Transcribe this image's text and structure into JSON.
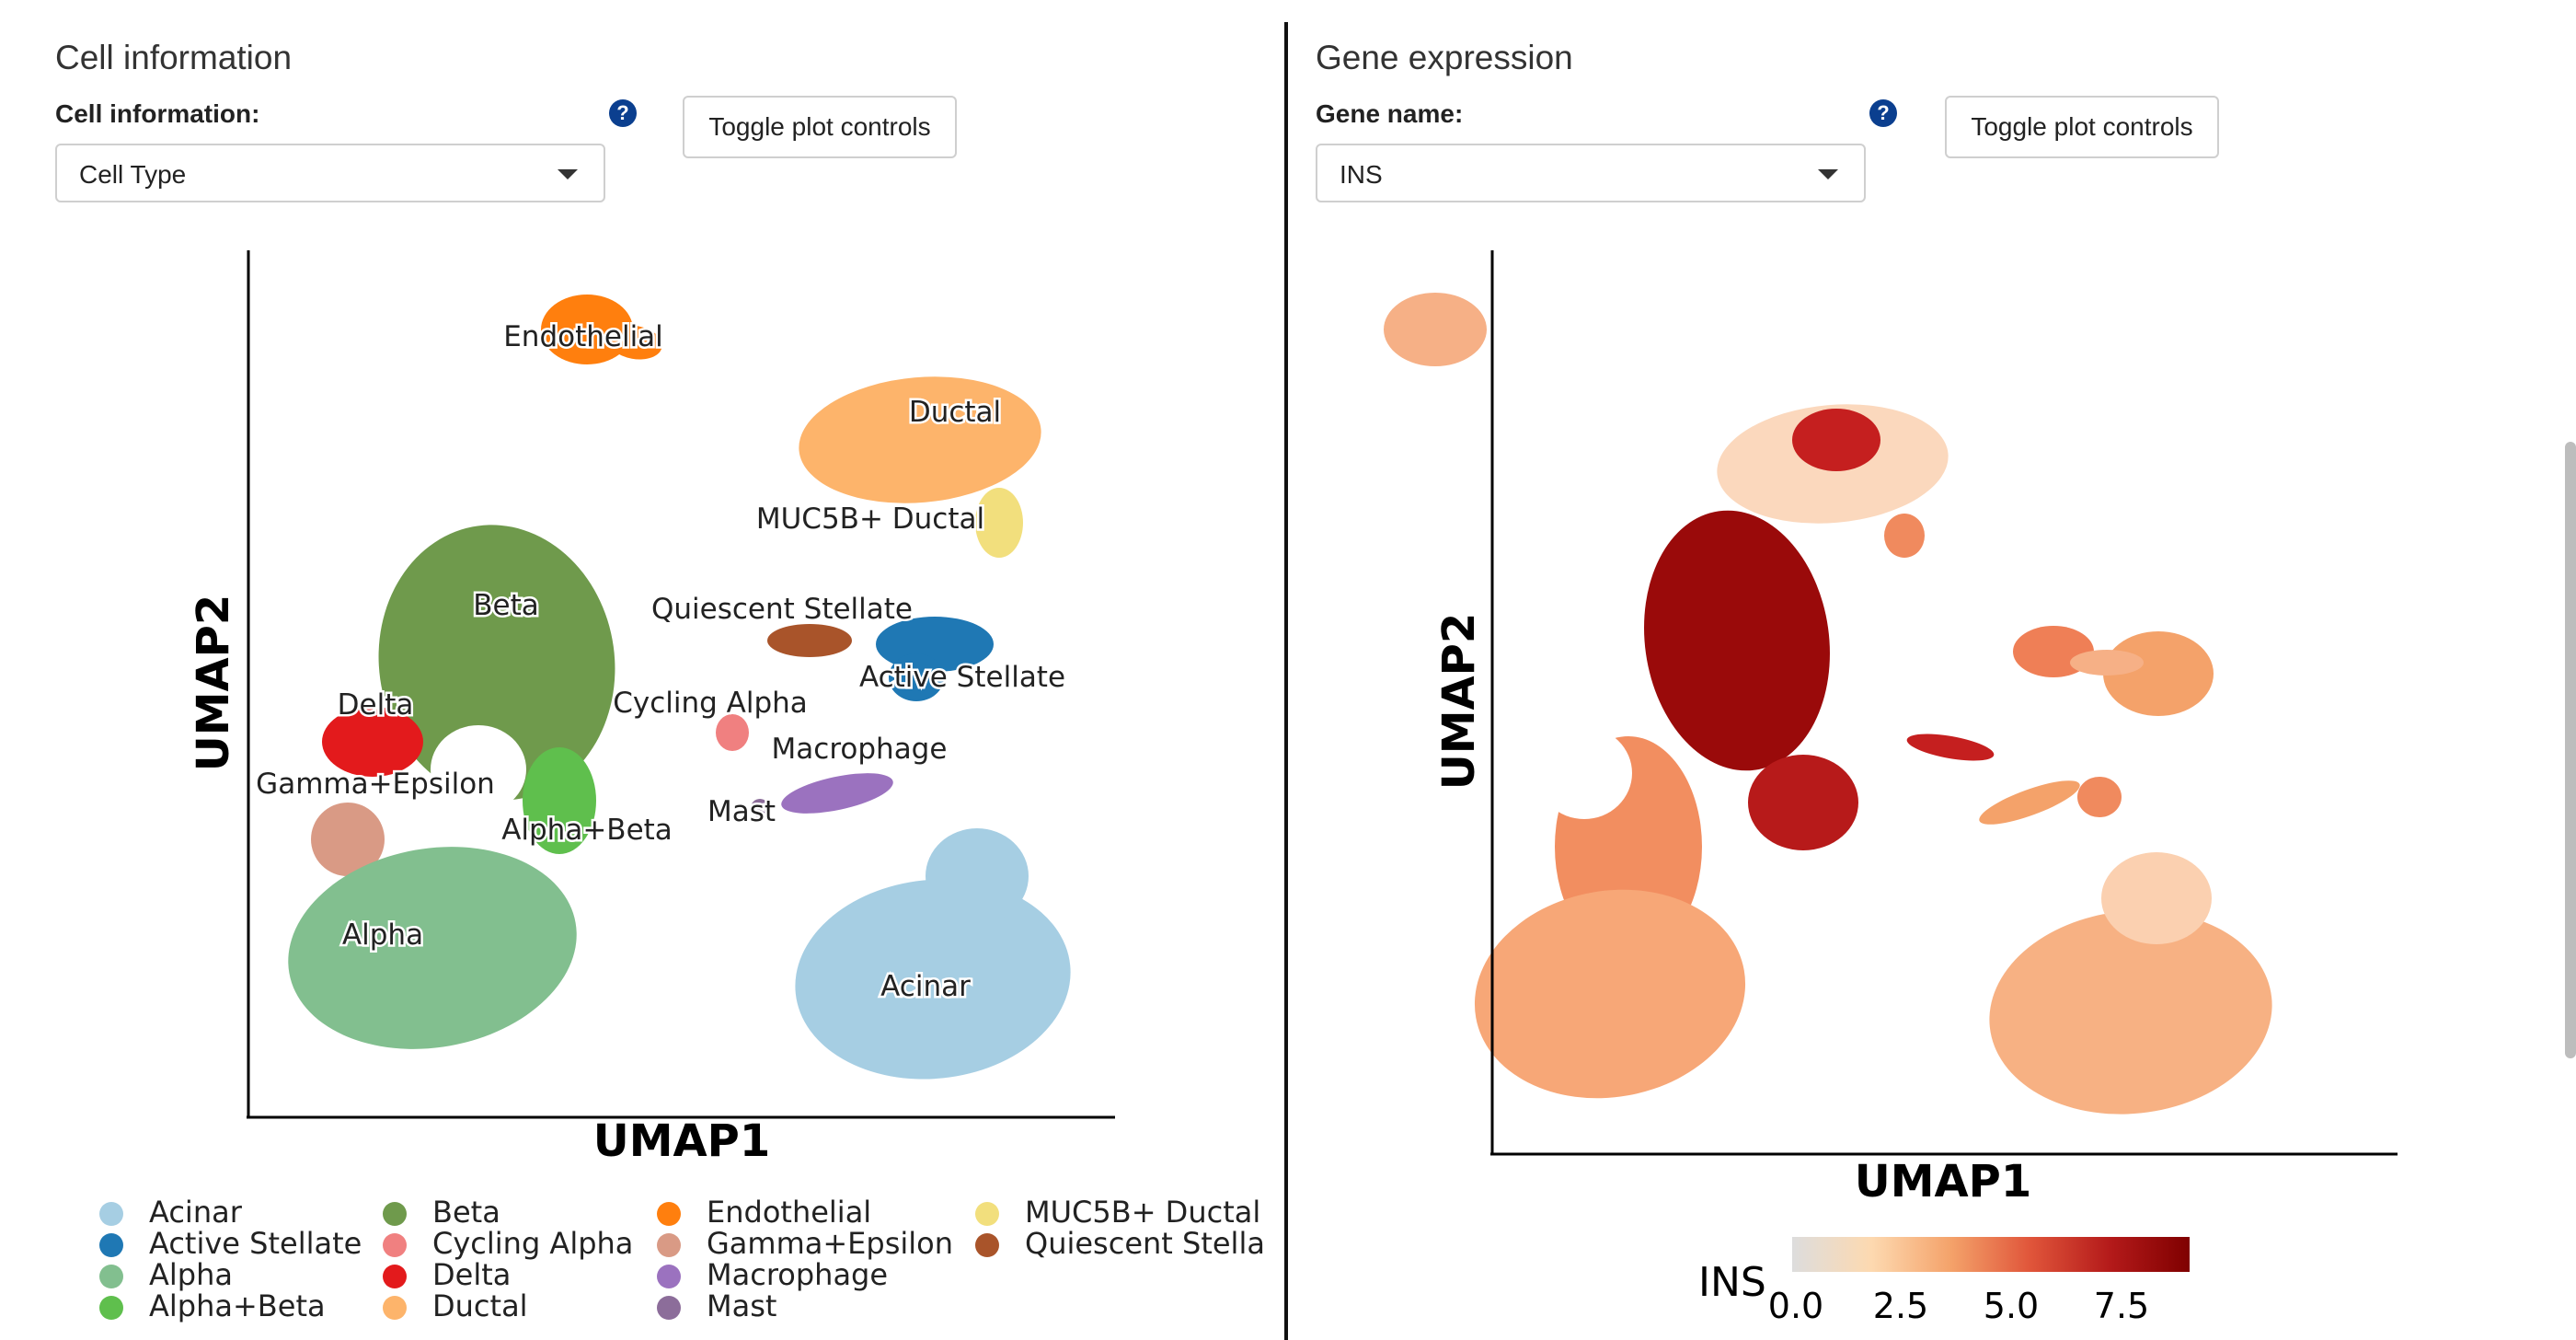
{
  "left": {
    "title": "Cell information",
    "field_label": "Cell information:",
    "select_value": "Cell Type",
    "toggle_label": "Toggle plot controls",
    "xlabel": "UMAP1",
    "ylabel": "UMAP2",
    "clusters": [
      {
        "label": "Endothelial"
      },
      {
        "label": "Ductal"
      },
      {
        "label": "MUC5B+ Ductal"
      },
      {
        "label": "Beta"
      },
      {
        "label": "Quiescent Stellate"
      },
      {
        "label": "Active Stellate"
      },
      {
        "label": "Delta"
      },
      {
        "label": "Cycling Alpha"
      },
      {
        "label": "Macrophage"
      },
      {
        "label": "Gamma+Epsilon"
      },
      {
        "label": "Mast"
      },
      {
        "label": "Alpha+Beta"
      },
      {
        "label": "Alpha"
      },
      {
        "label": "Acinar"
      }
    ],
    "legend": [
      {
        "label": "Acinar",
        "color": "#a6cee3"
      },
      {
        "label": "Active Stellate",
        "color": "#1f78b4"
      },
      {
        "label": "Alpha",
        "color": "#82bf8f"
      },
      {
        "label": "Alpha+Beta",
        "color": "#5fbf4d"
      },
      {
        "label": "Beta",
        "color": "#6f9a4c"
      },
      {
        "label": "Cycling Alpha",
        "color": "#f08080"
      },
      {
        "label": "Delta",
        "color": "#e31a1c"
      },
      {
        "label": "Ductal",
        "color": "#fdb46b"
      },
      {
        "label": "Endothelial",
        "color": "#ff7f0e"
      },
      {
        "label": "Gamma+Epsilon",
        "color": "#d99a85"
      },
      {
        "label": "Macrophage",
        "color": "#9b72bf"
      },
      {
        "label": "Mast",
        "color": "#8c6d9a"
      },
      {
        "label": "MUC5B+ Ductal",
        "color": "#f2df7d"
      },
      {
        "label": "Quiescent Stella",
        "color": "#a9542a"
      }
    ]
  },
  "right": {
    "title": "Gene expression",
    "field_label": "Gene name:",
    "select_value": "INS",
    "toggle_label": "Toggle plot controls",
    "xlabel": "UMAP1",
    "ylabel": "UMAP2",
    "colorbar_label": "INS",
    "colorbar_ticks": [
      "0.0",
      "2.5",
      "5.0",
      "7.5"
    ],
    "colorbar_stops": [
      "#dddddd",
      "#fdd9b0",
      "#f4a26a",
      "#e0553a",
      "#b41a1a",
      "#7f0000"
    ]
  },
  "help_icon_text": "?"
}
